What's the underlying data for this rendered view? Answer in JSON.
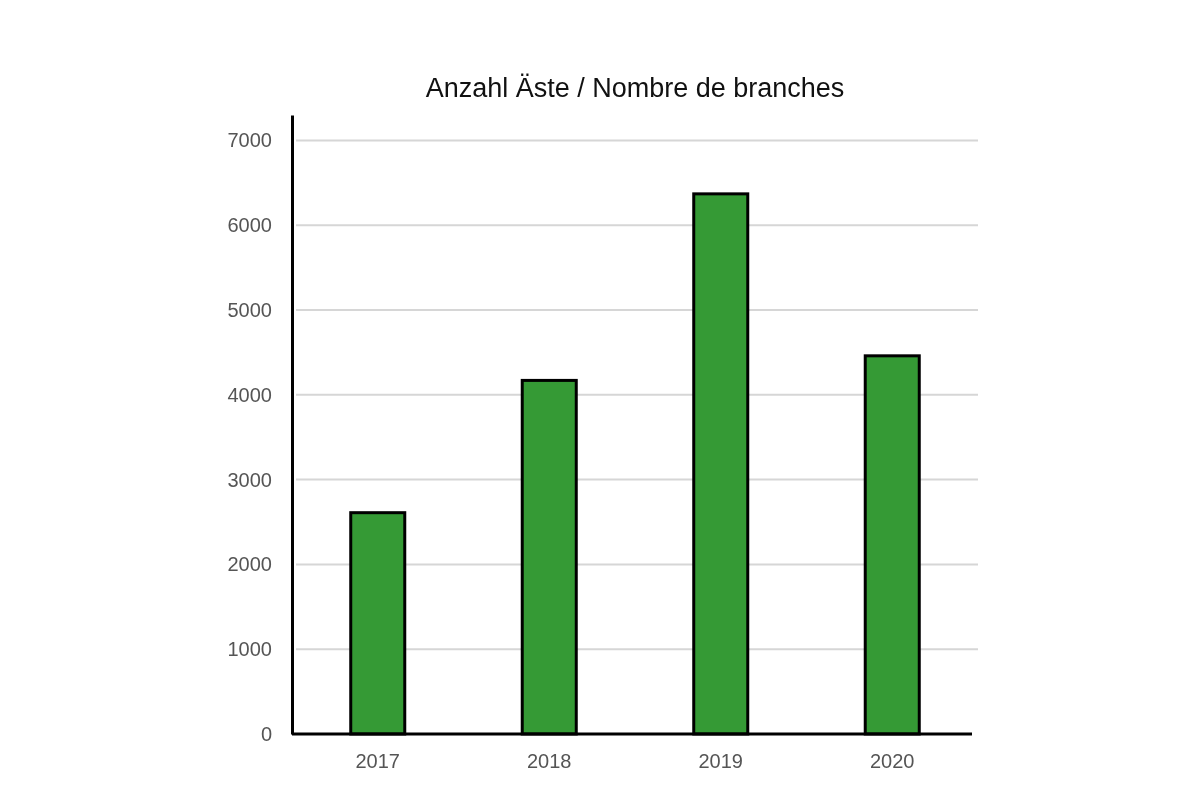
{
  "chart_data": {
    "type": "bar",
    "title": "Anzahl Äste / Nombre de branches",
    "categories": [
      "2017",
      "2018",
      "2019",
      "2020"
    ],
    "values": [
      2610,
      4170,
      6370,
      4460
    ],
    "color": "#359a35",
    "ylim": [
      0,
      7300
    ],
    "yticks": [
      0,
      1000,
      2000,
      3000,
      4000,
      5000,
      6000,
      7000
    ],
    "grid": "y"
  }
}
